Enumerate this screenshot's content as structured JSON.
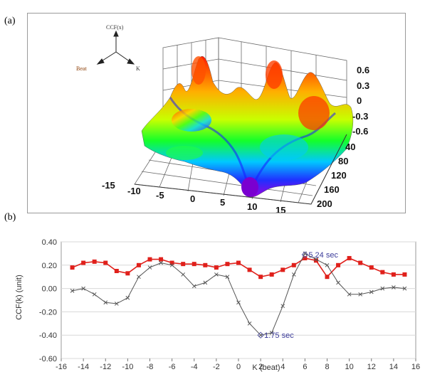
{
  "panel_a": {
    "label": "(a)",
    "axis_labels": {
      "vertical": "CCF(x)",
      "left": "Beat",
      "right": "K"
    },
    "z_ticks": [
      "0.6",
      "0.3",
      "0",
      "-0.3",
      "-0.6"
    ],
    "front_ticks": [
      "-15",
      "-10",
      "-5",
      "0",
      "5",
      "10",
      "15"
    ],
    "side_ticks": [
      "40",
      "80",
      "120",
      "160",
      "200"
    ]
  },
  "panel_b": {
    "label": "(b)"
  },
  "chart_data": {
    "type": "line",
    "xlabel": "K (beat)",
    "ylabel": "CCF(k) (unit)",
    "xlim": [
      -16,
      16
    ],
    "ylim": [
      -0.6,
      0.4
    ],
    "x_ticks": [
      -16,
      -14,
      -12,
      -10,
      -8,
      -6,
      -4,
      -2,
      0,
      2,
      4,
      6,
      8,
      10,
      12,
      14,
      16
    ],
    "y_ticks": [
      0.4,
      0.2,
      0.0,
      -0.2,
      -0.4,
      -0.6
    ],
    "y_tick_labels": [
      "0.40",
      "0.20",
      "0.00",
      "-0.20",
      "-0.40",
      "-0.60"
    ],
    "grid": true,
    "x": [
      -15,
      -14,
      -13,
      -12,
      -11,
      -10,
      -9,
      -8,
      -7,
      -6,
      -5,
      -4,
      -3,
      -2,
      -1,
      0,
      1,
      2,
      3,
      4,
      5,
      6,
      7,
      8,
      9,
      10,
      11,
      12,
      13,
      14,
      15
    ],
    "series": [
      {
        "color": "#e0201b",
        "marker": "square",
        "values": [
          0.18,
          0.22,
          0.23,
          0.22,
          0.15,
          0.13,
          0.2,
          0.25,
          0.25,
          0.22,
          0.21,
          0.21,
          0.2,
          0.18,
          0.21,
          0.22,
          0.16,
          0.1,
          0.12,
          0.16,
          0.2,
          0.26,
          0.24,
          0.1,
          0.2,
          0.26,
          0.22,
          0.18,
          0.14,
          0.12,
          0.12
        ]
      },
      {
        "color": "#555555",
        "marker": "cross",
        "values": [
          -0.02,
          0.0,
          -0.05,
          -0.12,
          -0.13,
          -0.08,
          0.1,
          0.18,
          0.22,
          0.2,
          0.12,
          0.02,
          0.05,
          0.12,
          0.1,
          -0.12,
          -0.3,
          -0.4,
          -0.38,
          -0.15,
          0.12,
          0.3,
          0.25,
          0.2,
          0.05,
          -0.05,
          -0.05,
          -0.03,
          0.0,
          0.01,
          0.0
        ]
      }
    ],
    "annotations": [
      {
        "text": "1.75 sec",
        "x": 2,
        "y": -0.4
      },
      {
        "text": "5.24 sec",
        "x": 6,
        "y": 0.29
      }
    ]
  }
}
